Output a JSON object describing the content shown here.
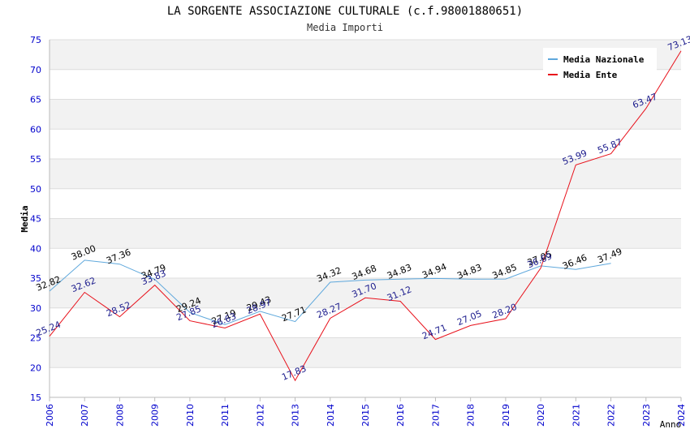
{
  "title": "LA SORGENTE ASSOCIAZIONE CULTURALE (c.f.98001880651)",
  "subtitle": "Media Importi",
  "chart_data": {
    "type": "line",
    "xlabel": "Anno",
    "ylabel": "Media",
    "ylim": [
      15,
      75
    ],
    "yticks": [
      15,
      20,
      25,
      30,
      35,
      40,
      45,
      50,
      55,
      60,
      65,
      70,
      75
    ],
    "x": [
      2006,
      2007,
      2008,
      2009,
      2010,
      2011,
      2012,
      2013,
      2014,
      2015,
      2016,
      2017,
      2018,
      2019,
      2020,
      2021,
      2022,
      2023,
      2024
    ],
    "grid": "horizontal, alternating bands",
    "legend": "top-right",
    "series": [
      {
        "name": "Media Nazionale",
        "color": "#5fa8dc",
        "label_color": "#000000",
        "values": [
          32.82,
          38.0,
          37.36,
          34.79,
          29.24,
          27.19,
          29.43,
          27.71,
          34.32,
          34.68,
          34.83,
          34.94,
          34.83,
          34.85,
          37.05,
          36.46,
          37.49,
          null,
          null
        ],
        "labels": [
          "32.82",
          "38.00",
          "37.36",
          "34.79",
          "29.24",
          "27.19",
          "29.43",
          "27.71",
          "34.32",
          "34.68",
          "34.83",
          "34.94",
          "34.83",
          "34.85",
          "37.05",
          "36.46",
          "37.49",
          null,
          null
        ]
      },
      {
        "name": "Media Ente",
        "color": "#e8111b",
        "label_color": "#1a1a8c",
        "values": [
          25.24,
          32.62,
          28.52,
          33.83,
          27.85,
          26.63,
          28.97,
          17.83,
          28.27,
          31.7,
          31.12,
          24.71,
          27.05,
          28.2,
          36.69,
          53.99,
          55.87,
          63.47,
          73.13
        ],
        "labels": [
          "25.24",
          "32.62",
          "28.52",
          "33.83",
          "27.85",
          "26.63",
          "28.97",
          "17.83",
          "28.27",
          "31.70",
          "31.12",
          "24.71",
          "27.05",
          "28.20",
          "36.69",
          "53.99",
          "55.87",
          "63.47",
          "73.13"
        ]
      }
    ],
    "colors": {
      "axis_tick_text": "#0000cc",
      "band": "#f2f2f2",
      "gridline": "#dddddd"
    }
  }
}
